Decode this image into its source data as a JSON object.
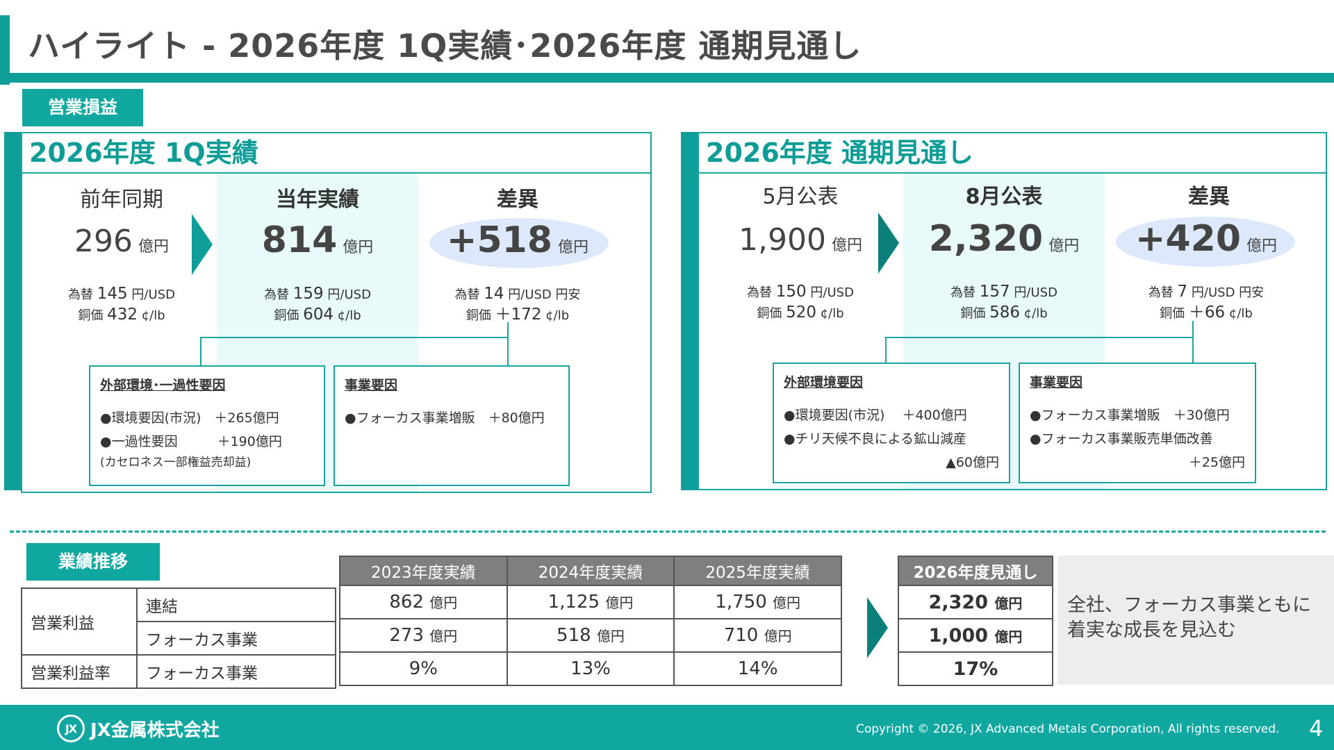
{
  "title": "ハイライト - 2026年度 1Q実績･2026年度 通期見通し",
  "section_tags": {
    "operating_profit": "営業損益",
    "trend": "業績推移"
  },
  "q1": {
    "heading": "2026年度 1Q実績",
    "cols": [
      {
        "head": "前年同期",
        "value": "296",
        "unit": "億円",
        "fx_label": "為替",
        "fx": "145",
        "fx_unit": "円/USD",
        "cu_label": "銅価",
        "cu": "432",
        "cu_unit": "¢/lb"
      },
      {
        "head": "当年実績",
        "value": "814",
        "unit": "億円",
        "fx_label": "為替",
        "fx": "159",
        "fx_unit": "円/USD",
        "cu_label": "銅価",
        "cu": "604",
        "cu_unit": "¢/lb"
      },
      {
        "head": "差異",
        "value": "+518",
        "unit": "億円",
        "fx_label": "為替",
        "fx": "14",
        "fx_unit": "円/USD 円安",
        "cu_label": "銅価",
        "cu": "＋172",
        "cu_unit": "¢/lb"
      }
    ],
    "box_external": {
      "heading": "外部環境･一過性要因",
      "item1": "●環境要因(市況)　＋265億円",
      "item2": "●一過性要因　　　＋190億円",
      "note": "(カセロネス一部権益売却益)"
    },
    "box_business": {
      "heading": "事業要因",
      "item1": "●フォーカス事業増販　＋80億円"
    }
  },
  "fy": {
    "heading": "2026年度 通期見通し",
    "cols": [
      {
        "head": "5月公表",
        "value": "1,900",
        "unit": "億円",
        "fx_label": "為替",
        "fx": "150",
        "fx_unit": "円/USD",
        "cu_label": "銅価",
        "cu": "520",
        "cu_unit": "¢/lb"
      },
      {
        "head": "8月公表",
        "value": "2,320",
        "unit": "億円",
        "fx_label": "為替",
        "fx": "157",
        "fx_unit": "円/USD",
        "cu_label": "銅価",
        "cu": "586",
        "cu_unit": "¢/lb"
      },
      {
        "head": "差異",
        "value": "+420",
        "unit": "億円",
        "fx_label": "為替",
        "fx": "7",
        "fx_unit": "円/USD 円安",
        "cu_label": "銅価",
        "cu": "＋66",
        "cu_unit": "¢/lb"
      }
    ],
    "box_external": {
      "heading": "外部環境要因",
      "item1": "●環境要因(市況)　 ＋400億円",
      "item2": "●チリ天候不良による鉱山減産",
      "item3": "▲60億円"
    },
    "box_business": {
      "heading": "事業要因",
      "item1": "●フォーカス事業増販　＋30億円",
      "item2": "●フォーカス事業販売単価改善",
      "item3": "＋25億円"
    }
  },
  "trend_table": {
    "row_labels": {
      "op_profit": "営業利益",
      "consolidated": "連結",
      "focus": "フォーカス事業",
      "op_margin": "営業利益率",
      "focus2": "フォーカス事業"
    },
    "years": [
      "2023年度実績",
      "2024年度実績",
      "2025年度実績"
    ],
    "rows": [
      [
        {
          "v": "862",
          "u": "億円"
        },
        {
          "v": "1,125",
          "u": "億円"
        },
        {
          "v": "1,750",
          "u": "億円"
        }
      ],
      [
        {
          "v": "273",
          "u": "億円"
        },
        {
          "v": "518",
          "u": "億円"
        },
        {
          "v": "710",
          "u": "億円"
        }
      ],
      [
        {
          "v": "9%",
          "u": ""
        },
        {
          "v": "13%",
          "u": ""
        },
        {
          "v": "14%",
          "u": ""
        }
      ]
    ],
    "forecast_head": "2026年度見通し",
    "forecast": [
      {
        "v": "2,320",
        "u": "億円"
      },
      {
        "v": "1,000",
        "u": "億円"
      },
      {
        "v": "17%",
        "u": ""
      }
    ]
  },
  "summary": "全社、フォーカス事業ともに着実な成長を見込む",
  "footer": {
    "logo_mark": "JX",
    "logo_text": "JX金属株式会社",
    "copyright": "Copyright © 2026, JX Advanced Metals Corporation, All rights reserved.",
    "page": "4"
  },
  "colors": {
    "accent": "#0f9e9a",
    "highlight": "#e8fafa",
    "ellipse": "#dde8fb"
  }
}
